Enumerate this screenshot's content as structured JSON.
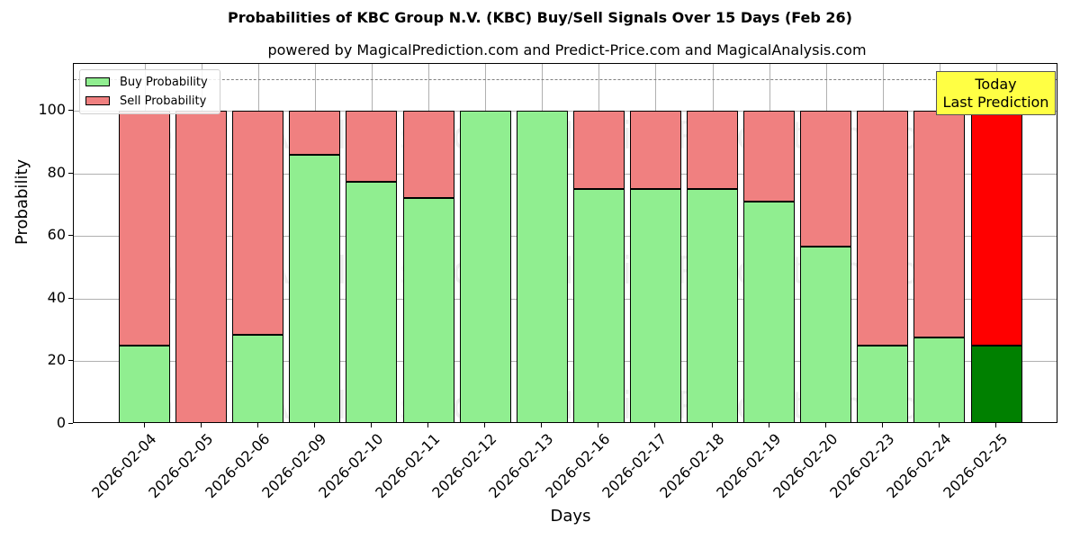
{
  "title": "Probabilities of KBC Group N.V. (KBC) Buy/Sell Signals Over 15 Days (Feb 26)",
  "subtitle": "powered by MagicalPrediction.com and Predict-Price.com and MagicalAnalysis.com",
  "watermarks": [
    "MagicalAnalysis.com",
    "MagicaPrediction.com"
  ],
  "annotation": {
    "line1": "Today",
    "line2": "Last Prediction"
  },
  "legend": {
    "buy": "Buy Probability",
    "sell": "Sell Probability"
  },
  "colors": {
    "buy": "#90ee90",
    "sell": "#f08080",
    "today_buy": "#008000",
    "today_sell": "#ff0000",
    "annotation_bg": "#ffff44"
  },
  "chart_data": {
    "type": "bar",
    "stacked": true,
    "title": "Probabilities of KBC Group N.V. (KBC) Buy/Sell Signals Over 15 Days (Feb 26)",
    "subtitle": "powered by MagicalPrediction.com and Predict-Price.com and MagicalAnalysis.com",
    "xlabel": "Days",
    "ylabel": "Probability",
    "ylim": [
      0,
      115
    ],
    "yticks": [
      0,
      20,
      40,
      60,
      80,
      100
    ],
    "grid": true,
    "legend_position": "upper left",
    "reference_line": 110,
    "categories": [
      "2026-02-04",
      "2026-02-05",
      "2026-02-06",
      "2026-02-09",
      "2026-02-10",
      "2026-02-11",
      "2026-02-12",
      "2026-02-13",
      "2026-02-16",
      "2026-02-17",
      "2026-02-18",
      "2026-02-19",
      "2026-02-20",
      "2026-02-23",
      "2026-02-24",
      "2026-02-25"
    ],
    "series": [
      {
        "name": "Buy Probability",
        "values": [
          25,
          0,
          28.6,
          86.1,
          77.4,
          72.3,
          100,
          100,
          75,
          75,
          75,
          71.1,
          56.6,
          25,
          27.7,
          25
        ]
      },
      {
        "name": "Sell Probability",
        "values": [
          75,
          100,
          71.4,
          13.9,
          22.6,
          27.7,
          0,
          0,
          25,
          25,
          25,
          28.9,
          43.4,
          75,
          72.3,
          75
        ]
      }
    ],
    "highlight": {
      "category": "2026-02-25",
      "label": "Today\nLast Prediction"
    }
  }
}
